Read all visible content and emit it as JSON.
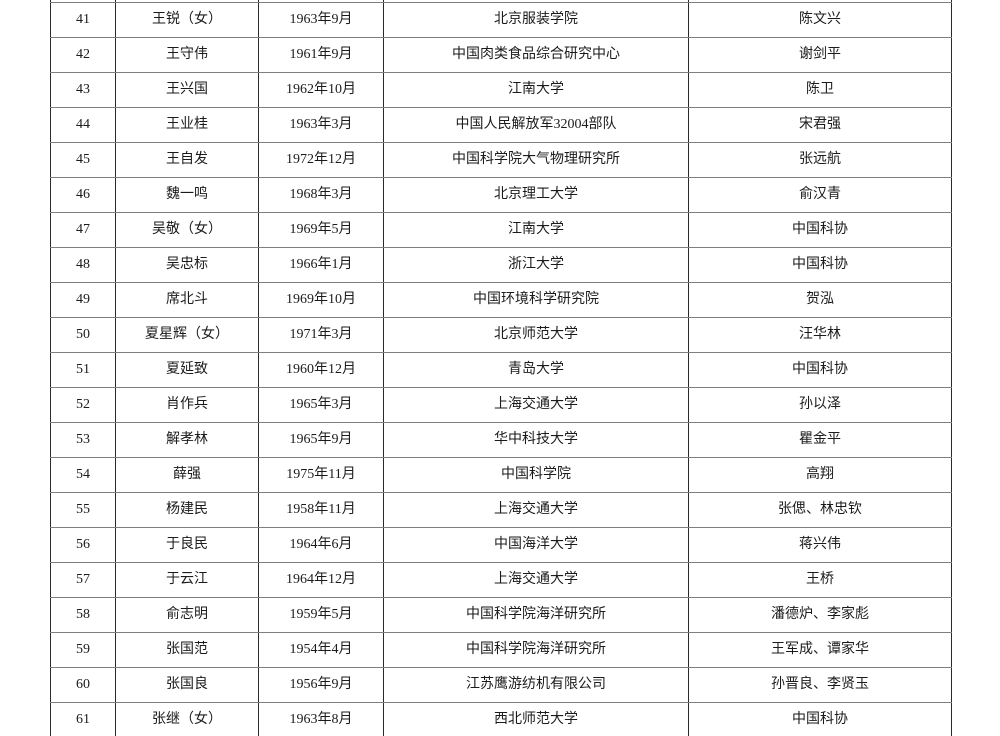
{
  "page": {
    "background_color": "#ffffff",
    "text_color": "#1b1b1b",
    "border_color_horizontal": "#7f7f7f",
    "border_color_vertical": "#2a2a2a"
  },
  "table": {
    "column_keys": [
      "no",
      "name",
      "birth_date",
      "work_unit",
      "nominator"
    ],
    "rows": [
      {
        "no": "41",
        "name": "王锐（女）",
        "birth_date": "1963年9月",
        "work_unit": "北京服装学院",
        "nominator": "陈文兴"
      },
      {
        "no": "42",
        "name": "王守伟",
        "birth_date": "1961年9月",
        "work_unit": "中国肉类食品综合研究中心",
        "nominator": "谢剑平"
      },
      {
        "no": "43",
        "name": "王兴国",
        "birth_date": "1962年10月",
        "work_unit": "江南大学",
        "nominator": "陈卫"
      },
      {
        "no": "44",
        "name": "王业桂",
        "birth_date": "1963年3月",
        "work_unit": "中国人民解放军32004部队",
        "nominator": "宋君强"
      },
      {
        "no": "45",
        "name": "王自发",
        "birth_date": "1972年12月",
        "work_unit": "中国科学院大气物理研究所",
        "nominator": "张远航"
      },
      {
        "no": "46",
        "name": "魏一鸣",
        "birth_date": "1968年3月",
        "work_unit": "北京理工大学",
        "nominator": "俞汉青"
      },
      {
        "no": "47",
        "name": "吴敬（女）",
        "birth_date": "1969年5月",
        "work_unit": "江南大学",
        "nominator": "中国科协"
      },
      {
        "no": "48",
        "name": "吴忠标",
        "birth_date": "1966年1月",
        "work_unit": "浙江大学",
        "nominator": "中国科协"
      },
      {
        "no": "49",
        "name": "席北斗",
        "birth_date": "1969年10月",
        "work_unit": "中国环境科学研究院",
        "nominator": "贺泓"
      },
      {
        "no": "50",
        "name": "夏星辉（女）",
        "birth_date": "1971年3月",
        "work_unit": "北京师范大学",
        "nominator": "汪华林"
      },
      {
        "no": "51",
        "name": "夏延致",
        "birth_date": "1960年12月",
        "work_unit": "青岛大学",
        "nominator": "中国科协"
      },
      {
        "no": "52",
        "name": "肖作兵",
        "birth_date": "1965年3月",
        "work_unit": "上海交通大学",
        "nominator": "孙以泽"
      },
      {
        "no": "53",
        "name": "解孝林",
        "birth_date": "1965年9月",
        "work_unit": "华中科技大学",
        "nominator": "瞿金平"
      },
      {
        "no": "54",
        "name": "薛强",
        "birth_date": "1975年11月",
        "work_unit": "中国科学院",
        "nominator": "高翔"
      },
      {
        "no": "55",
        "name": "杨建民",
        "birth_date": "1958年11月",
        "work_unit": "上海交通大学",
        "nominator": "张偲、林忠钦"
      },
      {
        "no": "56",
        "name": "于良民",
        "birth_date": "1964年6月",
        "work_unit": "中国海洋大学",
        "nominator": "蒋兴伟"
      },
      {
        "no": "57",
        "name": "于云江",
        "birth_date": "1964年12月",
        "work_unit": "上海交通大学",
        "nominator": "王桥"
      },
      {
        "no": "58",
        "name": "俞志明",
        "birth_date": "1959年5月",
        "work_unit": "中国科学院海洋研究所",
        "nominator": "潘德炉、李家彪"
      },
      {
        "no": "59",
        "name": "张国范",
        "birth_date": "1954年4月",
        "work_unit": "中国科学院海洋研究所",
        "nominator": "王军成、谭家华"
      },
      {
        "no": "60",
        "name": "张国良",
        "birth_date": "1956年9月",
        "work_unit": "江苏鹰游纺机有限公司",
        "nominator": "孙晋良、李贤玉"
      },
      {
        "no": "61",
        "name": "张继（女）",
        "birth_date": "1963年8月",
        "work_unit": "西北师范大学",
        "nominator": "中国科协"
      }
    ]
  }
}
